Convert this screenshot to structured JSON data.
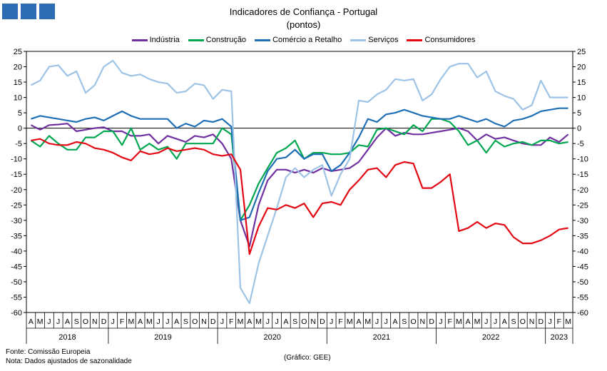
{
  "header": {
    "title": "Indicadores de Confiança - Portugal",
    "subtitle": "(pontos)"
  },
  "footer": {
    "source": "Fonte: Comissão Europeia",
    "note": "Nota: Dados ajustados de sazonalidade",
    "credit": "(Gráfico: GEE)"
  },
  "colors": {
    "logo": "#2e6db4"
  },
  "chart_data": {
    "type": "line",
    "title": "Indicadores de Confiança - Portugal",
    "subtitle": "(pontos)",
    "ylim": [
      -60,
      25
    ],
    "y_ticks": [
      25,
      20,
      15,
      10,
      5,
      0,
      -5,
      -10,
      -15,
      -20,
      -25,
      -30,
      -35,
      -40,
      -45,
      -50,
      -55,
      -60
    ],
    "grid": false,
    "legend_position": "top",
    "x_months": [
      "A",
      "M",
      "J",
      "J",
      "A",
      "S",
      "O",
      "N",
      "D",
      "J",
      "F",
      "M",
      "A",
      "M",
      "J",
      "J",
      "A",
      "S",
      "O",
      "N",
      "D",
      "J",
      "F",
      "M",
      "A",
      "M",
      "J",
      "J",
      "A",
      "S",
      "O",
      "N",
      "D",
      "J",
      "F",
      "M",
      "A",
      "M",
      "J",
      "J",
      "A",
      "S",
      "O",
      "N",
      "D",
      "J",
      "F",
      "M",
      "A",
      "M",
      "J",
      "J",
      "A",
      "S",
      "O",
      "N",
      "D",
      "J",
      "F",
      "M"
    ],
    "x_years": [
      {
        "label": "2018",
        "start": 0,
        "end": 8
      },
      {
        "label": "2019",
        "start": 9,
        "end": 20
      },
      {
        "label": "2020",
        "start": 21,
        "end": 32
      },
      {
        "label": "2021",
        "start": 33,
        "end": 44
      },
      {
        "label": "2022",
        "start": 45,
        "end": 56
      },
      {
        "label": "2023",
        "start": 57,
        "end": 59
      }
    ],
    "series": [
      {
        "name": "Indústria",
        "color": "#7030a0",
        "values": [
          1,
          -0.5,
          1,
          1.2,
          1.5,
          -1,
          -0.5,
          0,
          0.3,
          -1,
          -1,
          -2.5,
          -2.5,
          -2,
          -5,
          -2.5,
          -3.5,
          -4.5,
          -2.5,
          -3,
          -2,
          -5,
          -10,
          -30,
          -38.5,
          -25,
          -17,
          -13.5,
          -13.5,
          -14.5,
          -13.5,
          -14.5,
          -13,
          -14,
          -13.5,
          -13,
          -11,
          -7,
          -3,
          0,
          -2.5,
          -1.5,
          -2,
          -2,
          -1.5,
          -1,
          -0.5,
          0,
          -1,
          -4,
          -2,
          -3.5,
          -3,
          -4,
          -5,
          -5.5,
          -5.5,
          -3,
          -4.5,
          -2
        ]
      },
      {
        "name": "Construção",
        "color": "#00a650",
        "values": [
          -4,
          -6,
          -2.5,
          -5,
          -7,
          -7,
          -3,
          -3,
          -1,
          -1,
          -5.5,
          0,
          -7,
          -5,
          -7,
          -6,
          -10,
          -5,
          -5,
          -5,
          -5,
          0,
          -2,
          -30,
          -25,
          -18,
          -13,
          -8,
          -6.5,
          -4,
          -10,
          -8,
          -8,
          -8.5,
          -8.5,
          -8,
          -5.5,
          -6,
          -0.5,
          0,
          -1,
          -2,
          1,
          -1,
          3,
          3,
          2,
          -1,
          -5.5,
          -4,
          -8,
          -4,
          -6,
          -5,
          -4.5,
          -5.5,
          -4,
          -4,
          -5,
          -4.5
        ]
      },
      {
        "name": "Comércio a Retalho",
        "color": "#1f6fb5",
        "values": [
          3,
          4,
          3.5,
          3,
          2.5,
          2,
          3,
          3.5,
          2.5,
          4,
          5.5,
          4,
          3,
          3,
          3,
          3,
          0,
          1.5,
          0.5,
          2.5,
          2,
          3,
          0.5,
          -30,
          -29,
          -21,
          -14,
          -10,
          -9.5,
          -7,
          -10,
          -8.5,
          -8.5,
          -14,
          -12,
          -8,
          -3,
          3,
          2,
          4.5,
          5,
          6,
          5,
          4,
          3.5,
          3,
          3,
          4,
          3,
          2,
          3,
          1.5,
          0.5,
          2.5,
          3,
          4,
          5.5,
          6,
          6.5,
          6.5
        ]
      },
      {
        "name": "Serviços",
        "color": "#9dc3e6",
        "values": [
          14,
          15.5,
          20,
          20.5,
          17,
          18.5,
          11.5,
          14,
          20,
          22,
          18,
          17,
          17.5,
          16,
          15,
          14.5,
          11.5,
          12,
          14.5,
          14,
          9.5,
          12.5,
          12,
          -52,
          -57,
          -44,
          -35,
          -26,
          -16,
          -13,
          -16,
          -13.5,
          -12,
          -22,
          -15,
          -10,
          9,
          8.5,
          11,
          12.5,
          16,
          15.5,
          16,
          9,
          11,
          16,
          20,
          21,
          21,
          16.5,
          18.5,
          12,
          10.5,
          9.5,
          6,
          7.5,
          15.5,
          10,
          10,
          10
        ]
      },
      {
        "name": "Consumidores",
        "color": "#e30613",
        "values": [
          -4,
          -3.5,
          -5,
          -5.5,
          -5.5,
          -4.5,
          -5,
          -6.5,
          -7,
          -8,
          -9.5,
          -10.5,
          -7.5,
          -8.5,
          -8,
          -6.5,
          -7.5,
          -7,
          -6.5,
          -7,
          -8.5,
          -9,
          -8.5,
          -13.5,
          -41,
          -32,
          -26,
          -26.5,
          -25,
          -26,
          -24.5,
          -29,
          -24.5,
          -24,
          -25,
          -20,
          -17,
          -13.5,
          -13,
          -16,
          -12,
          -11,
          -11.5,
          -19.5,
          -19.5,
          -17.5,
          -15,
          -33.5,
          -32.5,
          -30.5,
          -32.5,
          -31,
          -31.5,
          -35.5,
          -37.5,
          -37.5,
          -36.5,
          -35,
          -33,
          -32.5
        ]
      }
    ]
  }
}
